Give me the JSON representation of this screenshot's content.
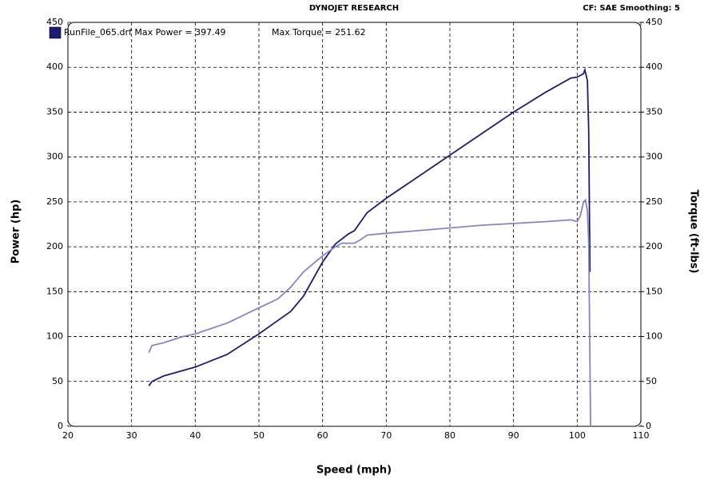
{
  "chart_data": {
    "type": "line",
    "title": "DYNOJET RESEARCH",
    "subtitle": "CF: SAE  Smoothing: 5",
    "x_label": "Speed (mph)",
    "y_label": "Power (hp)",
    "y2_label": "Torque (ft-lbs)",
    "xlim": [
      20,
      110
    ],
    "xticks": [
      20,
      30,
      40,
      50,
      60,
      70,
      80,
      90,
      100,
      110
    ],
    "ylim": [
      0,
      450
    ],
    "yticks": [
      0,
      50,
      100,
      150,
      200,
      250,
      300,
      350,
      400,
      450
    ],
    "y2lim": [
      0,
      450
    ],
    "y2ticks": [
      0,
      50,
      100,
      150,
      200,
      250,
      300,
      350,
      400,
      450
    ],
    "grid": true,
    "legend": "upper left",
    "series": [
      {
        "name": "RunFile_065.drf Max Power = 397.49",
        "color": "#1c1c70",
        "x": [
          32.7,
          33.2,
          35,
          38,
          40,
          45,
          50,
          53,
          55,
          57,
          60,
          62,
          64,
          65,
          66,
          67,
          70,
          75,
          80,
          85,
          90,
          95,
          99,
          100,
          101,
          101.2,
          101.6,
          101.8,
          102
        ],
        "values": [
          45,
          50,
          56,
          62,
          66,
          80,
          103,
          118,
          128,
          145,
          183,
          203,
          214,
          218,
          228,
          238,
          254,
          278,
          302,
          326,
          350,
          372,
          388,
          389,
          393,
          397,
          385,
          330,
          172
        ]
      },
      {
        "name": "Max Torque = 251.62",
        "color": "#8585c2",
        "axis": "y2",
        "x": [
          32.7,
          33.2,
          35,
          38,
          40,
          45,
          50,
          53,
          55,
          57,
          60,
          62,
          63,
          65,
          66,
          67,
          70,
          75,
          80,
          85,
          90,
          95,
          99,
          100,
          100.5,
          101,
          101.3,
          101.6,
          101.8,
          102.1
        ],
        "values": [
          82,
          90,
          93,
          100,
          103,
          115,
          132,
          142,
          155,
          172,
          190,
          200,
          204,
          204,
          208,
          213,
          215,
          218,
          221,
          224,
          226,
          228,
          230,
          228,
          235,
          250,
          252,
          240,
          205,
          0
        ]
      }
    ]
  }
}
